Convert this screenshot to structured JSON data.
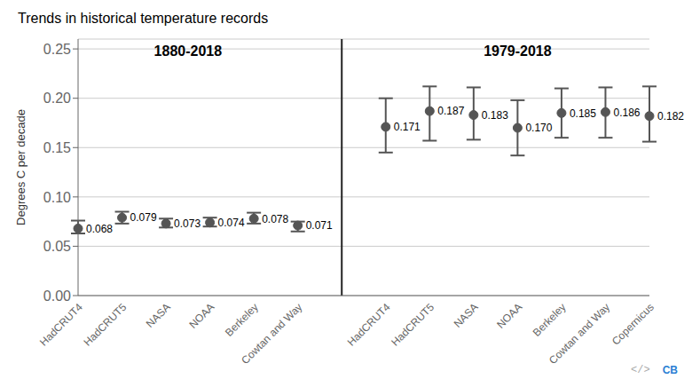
{
  "chart_data": {
    "type": "dot",
    "title": "Trends in historical temperature records",
    "ylabel": "Degrees C per decade",
    "groups": [
      {
        "name": "1880-2018",
        "categories": [
          "HadCRUT4",
          "HadCRUT5",
          "NASA",
          "NOAA",
          "Berkeley",
          "Cowtan and Way"
        ],
        "values": [
          0.068,
          0.079,
          0.073,
          0.074,
          0.078,
          0.071
        ],
        "value_labels": [
          "0.068",
          "0.079",
          "0.073",
          "0.074",
          "0.078",
          "0.071"
        ],
        "err_low": [
          0.005,
          0.006,
          0.004,
          0.004,
          0.005,
          0.006
        ],
        "err_high": [
          0.008,
          0.006,
          0.005,
          0.005,
          0.006,
          0.004
        ]
      },
      {
        "name": "1979-2018",
        "categories": [
          "HadCRUT4",
          "HadCRUT5",
          "NASA",
          "NOAA",
          "Berkeley",
          "Cowtan and Way",
          "Copernicus"
        ],
        "values": [
          0.171,
          0.187,
          0.183,
          0.17,
          0.185,
          0.186,
          0.182
        ],
        "value_labels": [
          "0.171",
          "0.187",
          "0.183",
          "0.170",
          "0.185",
          "0.186",
          "0.182"
        ],
        "err_low": [
          0.026,
          0.03,
          0.025,
          0.028,
          0.025,
          0.026,
          0.026
        ],
        "err_high": [
          0.029,
          0.025,
          0.028,
          0.028,
          0.025,
          0.025,
          0.03
        ]
      }
    ],
    "color": "#555555",
    "data_labels": true,
    "grid": true,
    "ylim": [
      0,
      0.26
    ],
    "yticks": [
      {
        "value": 0,
        "label": "0.00"
      },
      0.05,
      {
        "value": 0.1,
        "label": "0.10"
      },
      0.15,
      {
        "value": 0.2,
        "label": "0.20"
      },
      0.25
    ],
    "annotations": [
      "</>",
      "CB"
    ]
  }
}
